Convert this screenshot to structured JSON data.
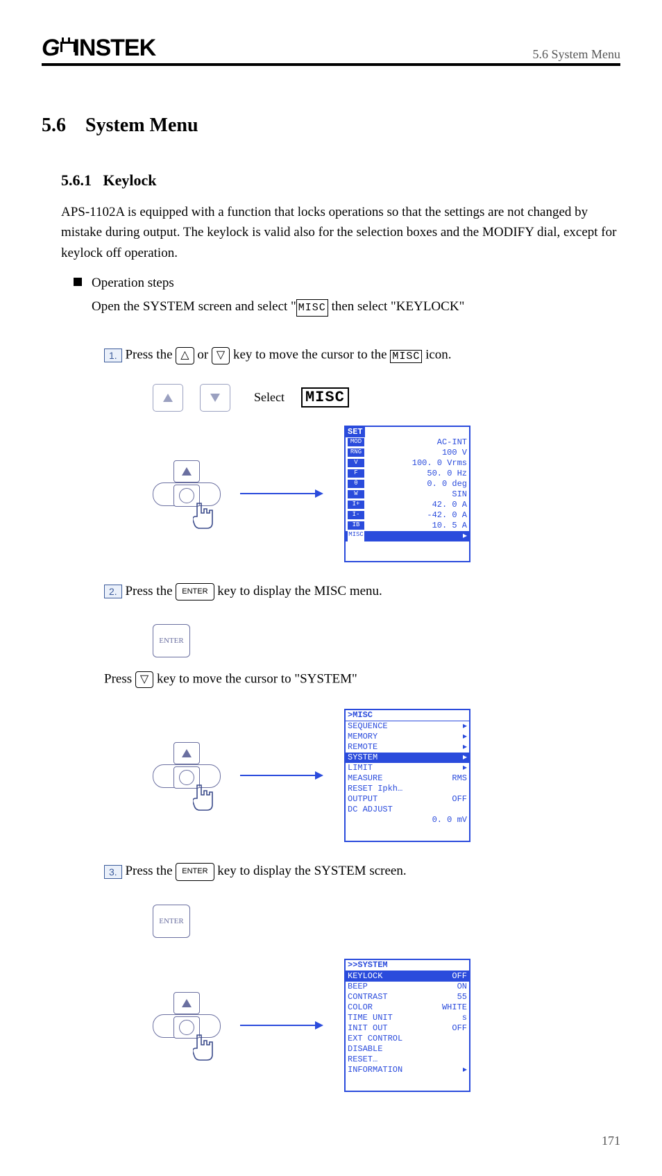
{
  "brand": "GWINSTEK",
  "header_right": "5.6 System Menu",
  "section_number": "5.6",
  "section_title": "System Menu",
  "subsection_number": "5.6.1",
  "subsection_title": "Keylock",
  "intro_text": "APS-1102A is equipped with a function that locks operations so that the settings are not changed by mistake during output. The keylock is valid also for the selection boxes and the MODIFY dial, except for keylock off operation.",
  "bullet_label": "Operation steps",
  "bullet_text_pre": "Open the SYSTEM screen and select \"",
  "bullet_text_key": "MISC",
  "bullet_text_mid": " then select \"",
  "bullet_text_item": "KEYLOCK",
  "bullet_text_post": "\"",
  "step1_num": "1.",
  "step1_text_pre": "Press the ",
  "step1_text_or": " or ",
  "step1_text_mid": " key to move the cursor to the ",
  "step1_text_icon": "MISC",
  "step1_text_post": " icon.",
  "keys_caption": "Select  ",
  "misc_label": "MISC",
  "lcd_set": {
    "title": "SET",
    "rows": [
      {
        "tag": "MOD",
        "val": "AC-INT"
      },
      {
        "tag": "RNG",
        "val": "100 V"
      },
      {
        "tag": "V",
        "val": "100. 0 Vrms"
      },
      {
        "tag": "F",
        "val": "50. 0 Hz"
      },
      {
        "tag": "θ",
        "val": "0. 0 deg"
      },
      {
        "tag": "W",
        "val": "SIN"
      },
      {
        "tag": "I+",
        "val": "42. 0 A"
      },
      {
        "tag": "I-",
        "val": "-42. 0 A"
      },
      {
        "tag": "IB",
        "val": "10. 5 A"
      }
    ],
    "hl_tag": "MISC",
    "hl_arrow": "▸"
  },
  "step2_num": "2.",
  "step2_text_pre": "Press the ",
  "step2_text_key": "ENTER",
  "step2_text_post": " key to display the MISC menu.",
  "step2b_text_pre": "Press ",
  "step2b_text_post": " key to move the cursor to  \"SYSTEM\"",
  "lcd_misc": {
    "title": ">MISC",
    "rows": [
      {
        "label": "SEQUENCE",
        "right": "▸",
        "hl": false
      },
      {
        "label": "MEMORY",
        "right": "▸",
        "hl": false
      },
      {
        "label": "REMOTE",
        "right": "▸",
        "hl": false
      },
      {
        "label": "SYSTEM",
        "right": "▸",
        "hl": true
      },
      {
        "label": "LIMIT",
        "right": "▸",
        "hl": false
      },
      {
        "label": "MEASURE",
        "right": "RMS",
        "hl": false
      },
      {
        "label": "RESET Ipkh…",
        "right": "",
        "hl": false
      },
      {
        "label": "OUTPUT",
        "right": "OFF",
        "hl": false
      },
      {
        "label": "DC ADJUST",
        "right": "",
        "hl": false
      },
      {
        "label": "",
        "right": "0. 0 mV",
        "hl": false
      }
    ]
  },
  "step3_num": "3.",
  "step3_text_pre": "Press the ",
  "step3_text_key": "ENTER",
  "step3_text_post": " key to display the SYSTEM screen.",
  "lcd_system": {
    "title": ">>SYSTEM",
    "rows": [
      {
        "label": "KEYLOCK",
        "right": "OFF",
        "hl": true
      },
      {
        "label": "BEEP",
        "right": "ON",
        "hl": false
      },
      {
        "label": "CONTRAST",
        "right": "55",
        "hl": false
      },
      {
        "label": "COLOR",
        "right": "WHITE",
        "hl": false
      },
      {
        "label": "TIME UNIT",
        "right": "s",
        "hl": false
      },
      {
        "label": "INIT OUT",
        "right": "OFF",
        "hl": false
      },
      {
        "label": "EXT CONTROL",
        "right": "",
        "hl": false
      },
      {
        "label": "       DISABLE",
        "right": "",
        "hl": false
      },
      {
        "label": "RESET…",
        "right": "",
        "hl": false
      },
      {
        "label": "INFORMATION",
        "right": "▸",
        "hl": false
      }
    ]
  },
  "page_number": "171"
}
